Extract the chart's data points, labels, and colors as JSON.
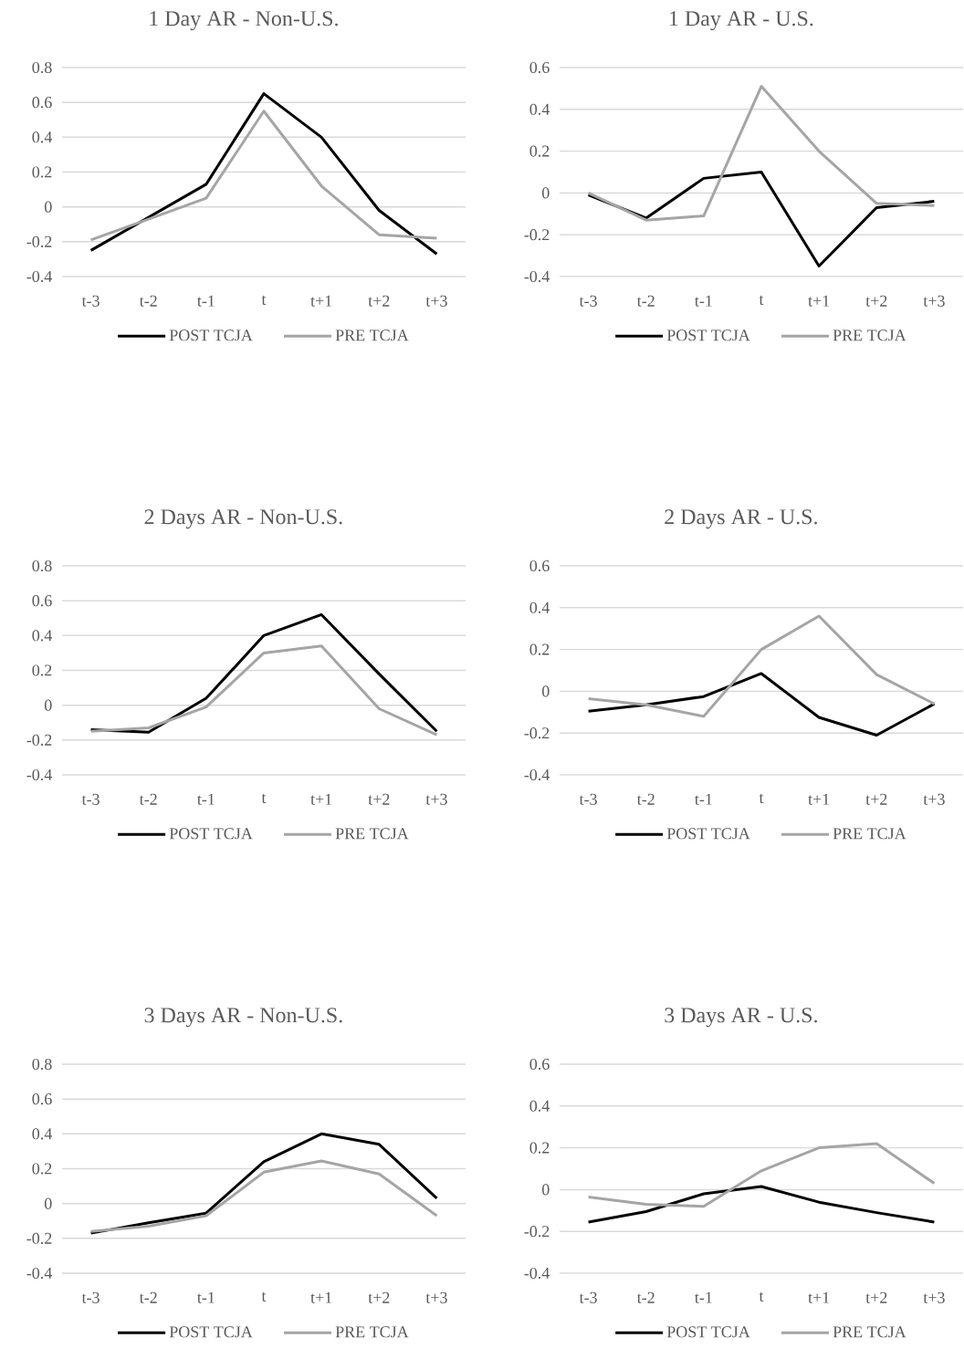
{
  "chart_data": [
    {
      "type": "line",
      "title": "1 Day AR - Non-U.S.",
      "categories": [
        "t-3",
        "t-2",
        "t-1",
        "t",
        "t+1",
        "t+2",
        "t+3"
      ],
      "ylim": [
        -0.4,
        0.8
      ],
      "yticks": [
        -0.4,
        -0.2,
        0,
        0.2,
        0.4,
        0.6,
        0.8
      ],
      "grid": "y",
      "legend": "bottom",
      "series": [
        {
          "name": "POST TCJA",
          "color": "#000000",
          "values": [
            -0.25,
            -0.06,
            0.13,
            0.65,
            0.4,
            -0.02,
            -0.27
          ]
        },
        {
          "name": "PRE TCJA",
          "color": "#a5a5a5",
          "values": [
            -0.19,
            -0.07,
            0.05,
            0.55,
            0.12,
            -0.16,
            -0.18
          ]
        }
      ]
    },
    {
      "type": "line",
      "title": "1 Day AR - U.S.",
      "categories": [
        "t-3",
        "t-2",
        "t-1",
        "t",
        "t+1",
        "t+2",
        "t+3"
      ],
      "ylim": [
        -0.4,
        0.6
      ],
      "yticks": [
        -0.4,
        -0.2,
        0,
        0.2,
        0.4,
        0.6
      ],
      "grid": "y",
      "legend": "bottom",
      "series": [
        {
          "name": "POST TCJA",
          "color": "#000000",
          "values": [
            -0.01,
            -0.12,
            0.07,
            0.1,
            -0.35,
            -0.07,
            -0.04
          ]
        },
        {
          "name": "PRE TCJA",
          "color": "#a5a5a5",
          "values": [
            0.0,
            -0.13,
            -0.11,
            0.51,
            0.2,
            -0.05,
            -0.06
          ]
        }
      ]
    },
    {
      "type": "line",
      "title": "2 Days AR - Non-U.S.",
      "categories": [
        "t-3",
        "t-2",
        "t-1",
        "t",
        "t+1",
        "t+2",
        "t+3"
      ],
      "ylim": [
        -0.4,
        0.8
      ],
      "yticks": [
        -0.4,
        -0.2,
        0,
        0.2,
        0.4,
        0.6,
        0.8
      ],
      "grid": "y",
      "legend": "bottom",
      "series": [
        {
          "name": "POST TCJA",
          "color": "#000000",
          "values": [
            -0.14,
            -0.155,
            0.04,
            0.4,
            0.52,
            0.18,
            -0.15
          ]
        },
        {
          "name": "PRE TCJA",
          "color": "#a5a5a5",
          "values": [
            -0.15,
            -0.13,
            -0.01,
            0.3,
            0.34,
            -0.02,
            -0.17
          ]
        }
      ]
    },
    {
      "type": "line",
      "title": "2 Days AR - U.S.",
      "categories": [
        "t-3",
        "t-2",
        "t-1",
        "t",
        "t+1",
        "t+2",
        "t+3"
      ],
      "ylim": [
        -0.4,
        0.6
      ],
      "yticks": [
        -0.4,
        -0.2,
        0,
        0.2,
        0.4,
        0.6
      ],
      "grid": "y",
      "legend": "bottom",
      "series": [
        {
          "name": "POST TCJA",
          "color": "#000000",
          "values": [
            -0.095,
            -0.065,
            -0.025,
            0.085,
            -0.125,
            -0.21,
            -0.06
          ]
        },
        {
          "name": "PRE TCJA",
          "color": "#a5a5a5",
          "values": [
            -0.035,
            -0.065,
            -0.12,
            0.2,
            0.36,
            0.08,
            -0.06
          ]
        }
      ]
    },
    {
      "type": "line",
      "title": "3 Days AR - Non-U.S.",
      "categories": [
        "t-3",
        "t-2",
        "t-1",
        "t",
        "t+1",
        "t+2",
        "t+3"
      ],
      "ylim": [
        -0.4,
        0.8
      ],
      "yticks": [
        -0.4,
        -0.2,
        0,
        0.2,
        0.4,
        0.6,
        0.8
      ],
      "grid": "y",
      "legend": "bottom",
      "series": [
        {
          "name": "POST TCJA",
          "color": "#000000",
          "values": [
            -0.17,
            -0.11,
            -0.055,
            0.24,
            0.4,
            0.34,
            0.03
          ]
        },
        {
          "name": "PRE TCJA",
          "color": "#a5a5a5",
          "values": [
            -0.16,
            -0.13,
            -0.07,
            0.18,
            0.245,
            0.17,
            -0.07
          ]
        }
      ]
    },
    {
      "type": "line",
      "title": "3 Days AR - U.S.",
      "categories": [
        "t-3",
        "t-2",
        "t-1",
        "t",
        "t+1",
        "t+2",
        "t+3"
      ],
      "ylim": [
        -0.4,
        0.6
      ],
      "yticks": [
        -0.4,
        -0.2,
        0,
        0.2,
        0.4,
        0.6
      ],
      "grid": "y",
      "legend": "bottom",
      "series": [
        {
          "name": "POST TCJA",
          "color": "#000000",
          "values": [
            -0.155,
            -0.105,
            -0.02,
            0.015,
            -0.06,
            -0.11,
            -0.155
          ]
        },
        {
          "name": "PRE TCJA",
          "color": "#a5a5a5",
          "values": [
            -0.035,
            -0.07,
            -0.08,
            0.09,
            0.2,
            0.22,
            0.03
          ]
        }
      ]
    }
  ]
}
